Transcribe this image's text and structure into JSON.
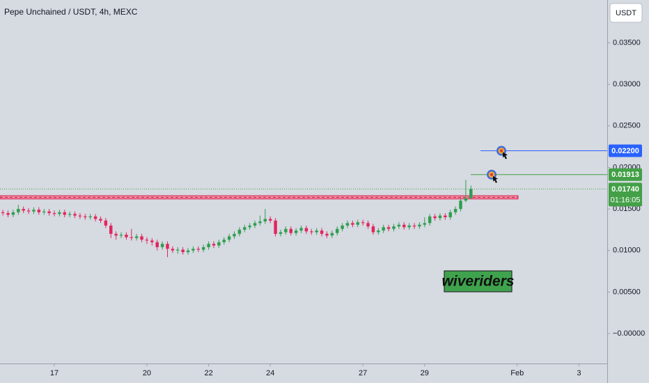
{
  "chart_data": {
    "type": "candlestick",
    "title": "Pepe Unchained / USDT, 4h, MEXC",
    "currency_button": "USDT",
    "up_color": "#2e9e4f",
    "down_color": "#e3245f",
    "open": [
      0.0146,
      0.0145,
      0.0143,
      0.0146,
      0.015,
      0.0148,
      0.0147,
      0.0149,
      0.0146,
      0.0147,
      0.0145,
      0.0144,
      0.0146,
      0.0143,
      0.0144,
      0.0142,
      0.0141,
      0.014,
      0.0141,
      0.0138,
      0.0136,
      0.013,
      0.012,
      0.0118,
      0.0119,
      0.0116,
      0.0115,
      0.0117,
      0.0113,
      0.0112,
      0.011,
      0.0104,
      0.0108,
      0.0102,
      0.01,
      0.0101,
      0.0098,
      0.01,
      0.0102,
      0.0101,
      0.0104,
      0.0108,
      0.0106,
      0.011,
      0.0113,
      0.0117,
      0.012,
      0.0125,
      0.0128,
      0.013,
      0.0133,
      0.0135,
      0.0138,
      0.0136,
      0.012,
      0.0122,
      0.0126,
      0.0121,
      0.0124,
      0.0127,
      0.0123,
      0.0122,
      0.0124,
      0.012,
      0.0118,
      0.0121,
      0.0126,
      0.013,
      0.0133,
      0.0131,
      0.0134,
      0.0133,
      0.0129,
      0.0122,
      0.0124,
      0.0128,
      0.0126,
      0.0129,
      0.0131,
      0.0128,
      0.013,
      0.0129,
      0.0131,
      0.0133,
      0.0141,
      0.0139,
      0.0142,
      0.014,
      0.0146,
      0.015,
      0.016,
      0.0163
    ],
    "high": [
      0.0149,
      0.0148,
      0.0149,
      0.0155,
      0.0153,
      0.0151,
      0.0152,
      0.0152,
      0.015,
      0.015,
      0.0148,
      0.0149,
      0.0149,
      0.0147,
      0.0147,
      0.0145,
      0.0144,
      0.0144,
      0.0144,
      0.0141,
      0.0139,
      0.0133,
      0.0123,
      0.0122,
      0.0122,
      0.0126,
      0.012,
      0.012,
      0.0116,
      0.0115,
      0.0113,
      0.0111,
      0.0111,
      0.0105,
      0.0104,
      0.0104,
      0.0103,
      0.0105,
      0.0105,
      0.0107,
      0.0111,
      0.0111,
      0.0113,
      0.0116,
      0.012,
      0.0123,
      0.0128,
      0.0131,
      0.0133,
      0.0136,
      0.0142,
      0.015,
      0.0141,
      0.0139,
      0.0125,
      0.0129,
      0.0129,
      0.0127,
      0.013,
      0.013,
      0.0126,
      0.0127,
      0.0127,
      0.0123,
      0.0124,
      0.0129,
      0.0133,
      0.0136,
      0.0136,
      0.0137,
      0.0137,
      0.0136,
      0.0132,
      0.0127,
      0.0131,
      0.0131,
      0.0132,
      0.0134,
      0.0134,
      0.0133,
      0.0133,
      0.0134,
      0.014,
      0.0144,
      0.0144,
      0.0145,
      0.0145,
      0.0149,
      0.0153,
      0.0163,
      0.0185,
      0.0178
    ],
    "low": [
      0.0142,
      0.014,
      0.014,
      0.0143,
      0.0145,
      0.0144,
      0.0144,
      0.0143,
      0.0143,
      0.0142,
      0.0141,
      0.0141,
      0.014,
      0.014,
      0.0139,
      0.0138,
      0.0137,
      0.0137,
      0.0135,
      0.0133,
      0.0127,
      0.0115,
      0.0113,
      0.0115,
      0.0113,
      0.0112,
      0.0112,
      0.011,
      0.0108,
      0.0106,
      0.01,
      0.0101,
      0.0092,
      0.0097,
      0.0096,
      0.0095,
      0.0095,
      0.0097,
      0.0098,
      0.0098,
      0.0101,
      0.0103,
      0.0103,
      0.0107,
      0.011,
      0.0114,
      0.0117,
      0.0122,
      0.0125,
      0.0127,
      0.013,
      0.0132,
      0.0133,
      0.0117,
      0.0117,
      0.0119,
      0.0118,
      0.0118,
      0.0121,
      0.012,
      0.0119,
      0.0119,
      0.0117,
      0.0115,
      0.0115,
      0.0118,
      0.0123,
      0.0127,
      0.0128,
      0.0128,
      0.013,
      0.0126,
      0.0119,
      0.0119,
      0.0121,
      0.0123,
      0.0123,
      0.0126,
      0.0125,
      0.0125,
      0.0126,
      0.0126,
      0.0128,
      0.013,
      0.0136,
      0.0136,
      0.0137,
      0.0137,
      0.0143,
      0.0147,
      0.0158,
      0.0162
    ],
    "close": [
      0.0145,
      0.0143,
      0.0146,
      0.015,
      0.0148,
      0.0147,
      0.0149,
      0.0146,
      0.0147,
      0.0145,
      0.0144,
      0.0146,
      0.0143,
      0.0144,
      0.0142,
      0.0141,
      0.014,
      0.0141,
      0.0138,
      0.0136,
      0.013,
      0.012,
      0.0118,
      0.0119,
      0.0116,
      0.0115,
      0.0117,
      0.0113,
      0.0112,
      0.011,
      0.0104,
      0.0108,
      0.0102,
      0.01,
      0.0101,
      0.0098,
      0.01,
      0.0102,
      0.0101,
      0.0104,
      0.0108,
      0.0106,
      0.011,
      0.0113,
      0.0117,
      0.012,
      0.0125,
      0.0128,
      0.013,
      0.0133,
      0.0135,
      0.0138,
      0.0136,
      0.012,
      0.0122,
      0.0126,
      0.0121,
      0.0124,
      0.0127,
      0.0123,
      0.0122,
      0.0124,
      0.012,
      0.0118,
      0.0121,
      0.0126,
      0.013,
      0.0133,
      0.0131,
      0.0134,
      0.0133,
      0.0129,
      0.0122,
      0.0124,
      0.0128,
      0.0126,
      0.0129,
      0.0131,
      0.0128,
      0.013,
      0.0129,
      0.0131,
      0.0133,
      0.0141,
      0.0139,
      0.0142,
      0.014,
      0.0146,
      0.015,
      0.016,
      0.0163,
      0.0174
    ],
    "xlim": [
      -0.56,
      117.5
    ],
    "xticks": [
      {
        "value": 10,
        "label": "17"
      },
      {
        "value": 28,
        "label": "20"
      },
      {
        "value": 40,
        "label": "22"
      },
      {
        "value": 52,
        "label": "24"
      },
      {
        "value": 70,
        "label": "27"
      },
      {
        "value": 82,
        "label": "29"
      },
      {
        "value": 100,
        "label": "Feb"
      },
      {
        "value": 112,
        "label": "3"
      }
    ],
    "ylim": [
      -0.00595,
      0.04015
    ],
    "yticks": [
      {
        "value": 0.035,
        "label": "0.03500"
      },
      {
        "value": 0.03,
        "label": "0.03000"
      },
      {
        "value": 0.025,
        "label": "0.02500"
      },
      {
        "value": 0.02,
        "label": "0.02000"
      },
      {
        "value": 0.015,
        "label": "0.01500"
      },
      {
        "value": 0.01,
        "label": "0.01000"
      },
      {
        "value": 0.005,
        "label": "0.00500"
      },
      {
        "value": 0,
        "label": "−0.00000"
      }
    ],
    "levels": [
      {
        "value": 0.022,
        "label": "0.02200",
        "color": "#2962ff"
      },
      {
        "value": 0.01913,
        "label": "0.01913",
        "color": "#43a047"
      }
    ],
    "last_price": {
      "value": 0.0174,
      "label": "0.01740",
      "countdown": "01:16:05",
      "color": "#43a047"
    },
    "zone": [
      0.0162,
      0.0166
    ],
    "zone_color": "#f0808a",
    "watermark": "wiveriders"
  }
}
